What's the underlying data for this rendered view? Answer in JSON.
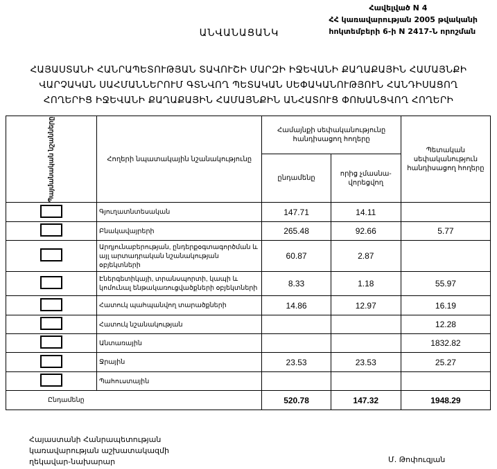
{
  "header_lines": [
    "Հավելված N 4",
    "ՀՀ կառավարության 2005 թվականի",
    "հոկտեմբերի 6-ի N 2417-Ն որոշման"
  ],
  "title": "ԱՆՎԱՆԱՑԱՆԿ",
  "subtitle_lines": [
    "ՀԱՅԱՍՏԱՆԻ ՀԱՆՐԱՊԵՏՈՒԹՅԱՆ ՏԱՎՈՒՇԻ ՄԱՐԶԻ ԻՋԵՎԱՆԻ ՔԱՂԱՔԱՅԻՆ ՀԱՄԱՅՆՔԻ",
    "ՎԱՐՉԱԿԱՆ ՍԱՀՄԱՆՆԵՐՈՒՄ ԳՏՆՎՈՂ ՊԵՏԱԿԱՆ ՍԵՓԱԿԱՆՈՒԹՅՈՒՆ ՀԱՆԴԻՍԱՑՈՂ",
    "ՀՈՂԵՐԻՑ ԻՋԵՎԱՆԻ ՔԱՂԱՔԱՅԻՆ ՀԱՄԱՅՆՔԻՆ ԱՆՀԱՏՈՒՑ ՓՈԽԱՆՑՎՈՂ ՀՈՂԵՐԻ"
  ],
  "table": {
    "headers": {
      "symbols": "Պայմանական նշանները",
      "purpose": "Հողերի նպատակային նշանակությունը",
      "community": "Համայնքի սեփականությունը հանդիսացող հողերը",
      "total": "ընդամենը",
      "non_privatized": "որից չմասնա-վորեցվող",
      "state": "Պետական սեփականություն հանդիսացող հողերը"
    },
    "rows": [
      {
        "label": "Գյուղատնտեսական",
        "total": "147.71",
        "non_privatized": "14.11",
        "state": ""
      },
      {
        "label": "Բնակավայրերի",
        "total": "265.48",
        "non_privatized": "92.66",
        "state": "5.77"
      },
      {
        "label": "Արդյունաբերության, ընդերքօգտագործման և այլ արտադրական նշանակության օբյեկտների",
        "total": "60.87",
        "non_privatized": "2.87",
        "state": ""
      },
      {
        "label": "Էներգետիկայի, տրանսպորտի, կապի և կոմունալ ենթակառուցվածքների օբյեկտների",
        "total": "8.33",
        "non_privatized": "1.18",
        "state": "55.97"
      },
      {
        "label": "Հատուկ պահպանվող տարածքների",
        "total": "14.86",
        "non_privatized": "12.97",
        "state": "16.19"
      },
      {
        "label": "Հատուկ նշանակության",
        "total": "",
        "non_privatized": "",
        "state": "12.28"
      },
      {
        "label": "Անտառային",
        "total": "",
        "non_privatized": "",
        "state": "1832.82"
      },
      {
        "label": "Ջրային",
        "total": "23.53",
        "non_privatized": "23.53",
        "state": "25.27"
      },
      {
        "label": "Պահուստային",
        "total": "",
        "non_privatized": "",
        "state": ""
      }
    ],
    "total_row": {
      "label": "Ընդամենը",
      "total": "520.78",
      "non_privatized": "147.32",
      "state": "1948.29"
    }
  },
  "footer": {
    "lines": [
      "Հայաստանի Հանրապետության",
      "կառավարության աշխատակազմի",
      "ղեկավար-նախարար"
    ],
    "signatory": "Մ. Թոփուզյան"
  }
}
